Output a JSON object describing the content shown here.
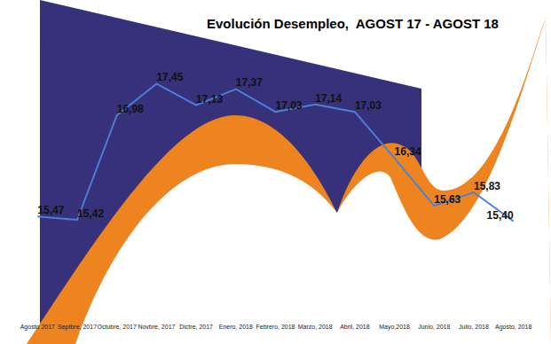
{
  "chart_data": {
    "type": "line",
    "title": "Evolución Desempleo,  AGOST 17 - AGOST 18",
    "categories": [
      "Agosto 2017",
      "Septbre, 2017",
      "Octubre, 2017",
      "Novbre, 2017",
      "Dictre, 2017",
      "Enero, 2018",
      "Febrero, 2018",
      "Marzo, 2018",
      "Abril, 2018",
      "Mayo,2018",
      "Junio, 2018",
      "Julio, 2018",
      "Agosto, 2018"
    ],
    "values": [
      15.47,
      15.42,
      16.98,
      17.45,
      17.13,
      17.37,
      17.03,
      17.14,
      17.03,
      16.34,
      15.63,
      15.83,
      15.4
    ],
    "value_labels": [
      "15,47",
      "15,42",
      "16,98",
      "17,45",
      "17,13",
      "17,37",
      "17,03",
      "17,14",
      "17,03",
      "16,34",
      "15,63",
      "15,83",
      "15,40"
    ],
    "color": "#4a80d6",
    "ylim": [
      13.9,
      18.5
    ],
    "grid": false,
    "data_labels": true,
    "tick_labels": "x"
  }
}
